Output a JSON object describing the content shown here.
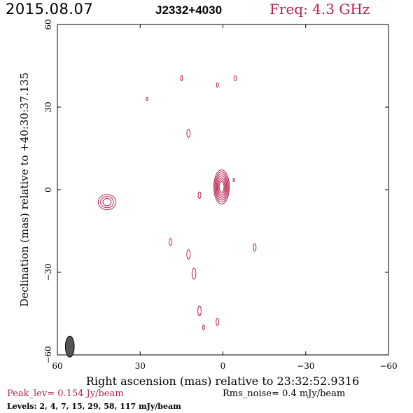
{
  "header": {
    "date": "2015.08.07",
    "source": "J2332+4030",
    "freq": "Freq: 4.3 GHz"
  },
  "colors": {
    "contour": "#b8214c",
    "beam": "#555555",
    "axes": "#000000"
  },
  "chart_data": {
    "type": "contour",
    "xlabel": "Right ascension (mas) relative to 23:32:52.9316",
    "ylabel": "Declination (mas) relative to +40:30:37.135",
    "xlim": [
      60,
      -60
    ],
    "ylim": [
      -60,
      60
    ],
    "x_ticks": [
      60,
      30,
      0,
      -30,
      -60
    ],
    "y_ticks": [
      60,
      30,
      0,
      -30,
      -60
    ],
    "x_tick_labels": [
      "60",
      "30",
      "0",
      "−30",
      "−60"
    ],
    "y_tick_labels": [
      "60",
      "30",
      "0",
      "−30",
      "−60"
    ],
    "peak": "Peak_lev=  0.154 Jy/beam",
    "rms_noise": "Rms_noise=  0.4 mJy/beam",
    "levels_text": "Levels:  2,  4,  7,  15,  29,  58,  117 mJy/beam",
    "levels_mJy": [
      2,
      4,
      7,
      15,
      29,
      58,
      117
    ],
    "components": [
      {
        "x": 0.5,
        "y": 1,
        "sx": 2.8,
        "sy": 6.2,
        "rings": 7
      },
      {
        "x": 42,
        "y": -4.5,
        "sx": 3.2,
        "sy": 2.8,
        "rings": 3
      },
      {
        "x": 15,
        "y": 40.5,
        "sx": 0.35,
        "sy": 1.0,
        "rings": 1
      },
      {
        "x": 2,
        "y": 38,
        "sx": 0.35,
        "sy": 0.8,
        "rings": 1
      },
      {
        "x": -4.5,
        "y": 40.5,
        "sx": 0.5,
        "sy": 0.9,
        "rings": 1
      },
      {
        "x": 27.5,
        "y": 33,
        "sx": 0.3,
        "sy": 0.6,
        "rings": 1
      },
      {
        "x": 12.5,
        "y": 20.5,
        "sx": 0.6,
        "sy": 1.5,
        "rings": 1
      },
      {
        "x": -4,
        "y": 3.5,
        "sx": 0.3,
        "sy": 0.6,
        "rings": 1
      },
      {
        "x": 8.5,
        "y": -2,
        "sx": 0.5,
        "sy": 1.2,
        "rings": 1
      },
      {
        "x": 19,
        "y": -19,
        "sx": 0.5,
        "sy": 1.3,
        "rings": 1
      },
      {
        "x": -11.5,
        "y": -21,
        "sx": 0.5,
        "sy": 1.4,
        "rings": 1
      },
      {
        "x": 12.5,
        "y": -23.5,
        "sx": 0.6,
        "sy": 1.7,
        "rings": 1
      },
      {
        "x": 10.5,
        "y": -30.5,
        "sx": 0.7,
        "sy": 2.0,
        "rings": 1
      },
      {
        "x": 8.5,
        "y": -44,
        "sx": 0.6,
        "sy": 1.8,
        "rings": 1
      },
      {
        "x": 2,
        "y": -48,
        "sx": 0.5,
        "sy": 1.3,
        "rings": 1
      },
      {
        "x": 7,
        "y": -50,
        "sx": 0.35,
        "sy": 0.9,
        "rings": 1
      }
    ],
    "beam": {
      "x": 55.5,
      "y": -57,
      "major": 3.8,
      "minor": 1.6
    }
  }
}
